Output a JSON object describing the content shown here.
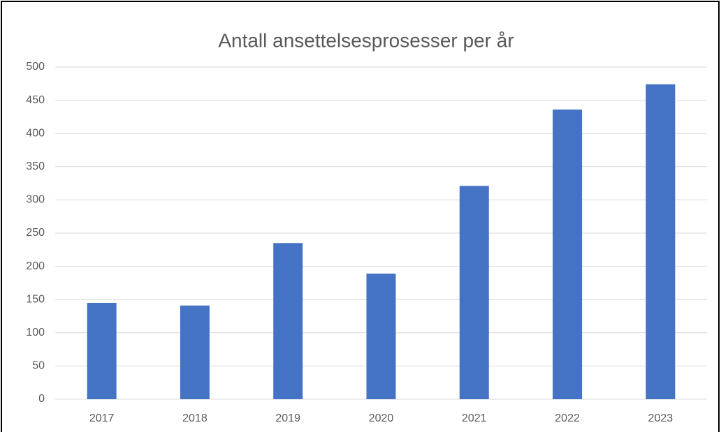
{
  "chart_data": {
    "type": "bar",
    "title": "Antall ansettelsesprosesser per år",
    "categories": [
      "2017",
      "2018",
      "2019",
      "2020",
      "2021",
      "2022",
      "2023"
    ],
    "values": [
      145,
      141,
      235,
      189,
      321,
      436,
      474
    ],
    "color": "#4472c4",
    "ylim": [
      0,
      500
    ],
    "yticks": [
      0,
      50,
      100,
      150,
      200,
      250,
      300,
      350,
      400,
      450,
      500
    ],
    "grid": true
  }
}
